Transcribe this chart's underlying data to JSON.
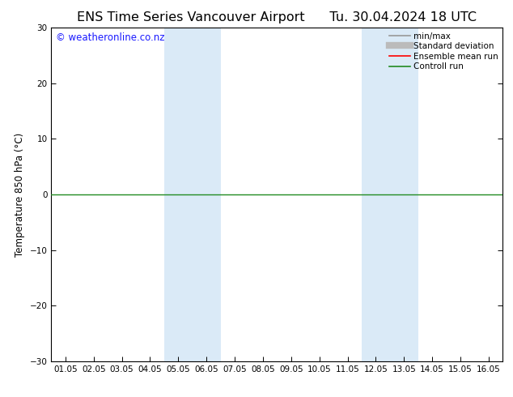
{
  "title": "ENS Time Series Vancouver Airport",
  "title2": "Tu. 30.04.2024 18 UTC",
  "ylabel": "Temperature 850 hPa (°C)",
  "ylim": [
    -30,
    30
  ],
  "yticks": [
    -30,
    -20,
    -10,
    0,
    10,
    20,
    30
  ],
  "xlim_start": -0.5,
  "xlim_end": 15.5,
  "x_tick_labels": [
    "01.05",
    "02.05",
    "03.05",
    "04.05",
    "05.05",
    "06.05",
    "07.05",
    "08.05",
    "09.05",
    "10.05",
    "11.05",
    "12.05",
    "13.05",
    "14.05",
    "15.05",
    "16.05"
  ],
  "x_tick_positions": [
    0.0,
    1.0,
    2.0,
    3.0,
    4.0,
    5.0,
    6.0,
    7.0,
    8.0,
    9.0,
    10.0,
    11.0,
    12.0,
    13.0,
    14.0,
    15.0
  ],
  "shaded_regions": [
    {
      "xmin": 3.5,
      "xmax": 5.5,
      "color": "#daeaf7"
    },
    {
      "xmin": 10.5,
      "xmax": 12.5,
      "color": "#daeaf7"
    }
  ],
  "zero_line_y": 0,
  "zero_line_color": "#228B22",
  "zero_line_lw": 1.0,
  "background_color": "#ffffff",
  "watermark": "© weatheronline.co.nz",
  "watermark_color": "#1a1aff",
  "watermark_fontsize": 8.5,
  "legend_items": [
    {
      "label": "min/max",
      "color": "#999999",
      "lw": 1.2,
      "linestyle": "-"
    },
    {
      "label": "Standard deviation",
      "color": "#bbbbbb",
      "lw": 5,
      "linestyle": "-"
    },
    {
      "label": "Ensemble mean run",
      "color": "#ff0000",
      "lw": 1.2,
      "linestyle": "-"
    },
    {
      "label": "Controll run",
      "color": "#228B22",
      "lw": 1.2,
      "linestyle": "-"
    }
  ],
  "title_fontsize": 11.5,
  "tick_fontsize": 7.5,
  "ylabel_fontsize": 8.5,
  "legend_fontsize": 7.5
}
